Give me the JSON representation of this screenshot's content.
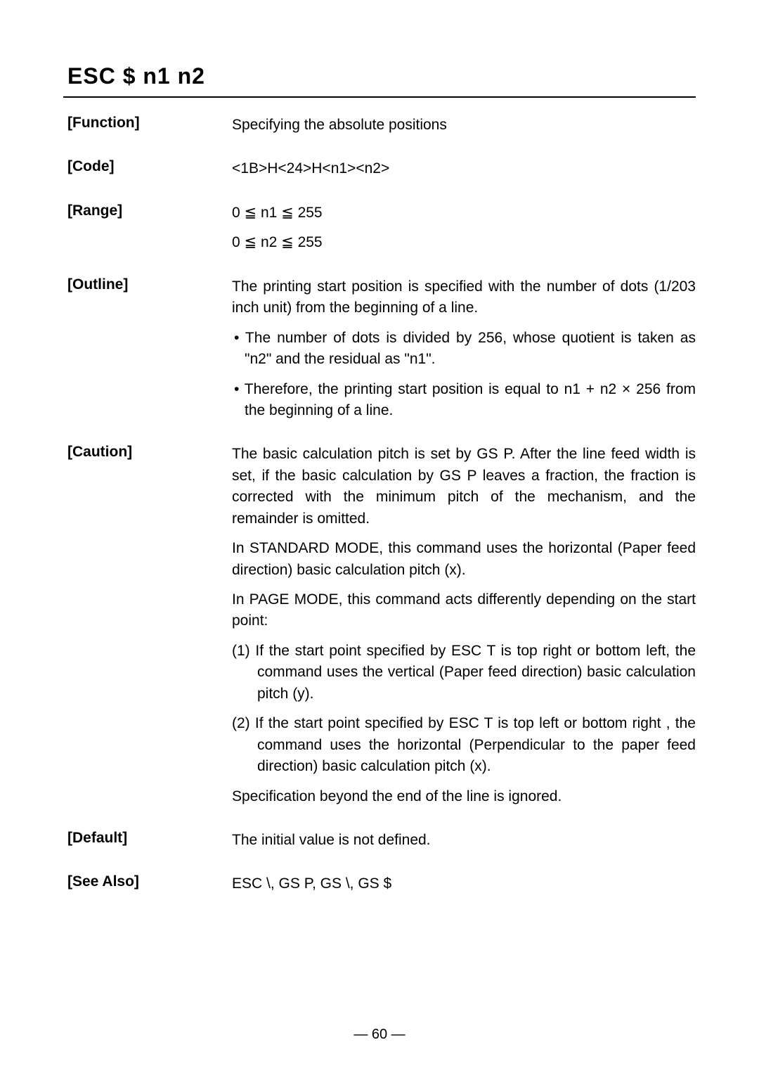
{
  "title": "ESC  $  n1  n2",
  "sections": {
    "function": {
      "label": "[Function]",
      "text": "Specifying the absolute positions"
    },
    "code": {
      "label": "[Code]",
      "text": "<1B>H<24>H<n1><n2>"
    },
    "range": {
      "label": "[Range]",
      "line1": "0 ≦ n1 ≦ 255",
      "line2": "0 ≦ n2 ≦ 255"
    },
    "outline": {
      "label": "[Outline]",
      "p1": "The printing start position is specified with the number of dots (1/203 inch unit) from the beginning of a line.",
      "b1": "• The number of dots is divided by 256, whose quotient is taken as \"n2\" and the residual as \"n1\".",
      "b2": "• Therefore, the printing start position is equal to n1 + n2 × 256 from the beginning of a line."
    },
    "caution": {
      "label": "[Caution]",
      "p1": "The basic calculation pitch is set by GS P. After the line feed width is set, if the basic calculation by GS P leaves a fraction, the fraction is corrected with the minimum pitch of the mechanism, and the remainder is omitted.",
      "p2": "In STANDARD MODE, this command uses the horizontal (Paper feed direction) basic calculation pitch (x).",
      "p3": "In PAGE MODE, this command acts differently depending on the start point:",
      "n1": "(1) If the start point specified by ESC T is top right or bottom left, the command uses the vertical (Paper feed direction) basic calculation pitch (y).",
      "n2": "(2) If the start point specified by ESC T is top left or bottom right , the command uses the horizontal (Perpendicular to the paper feed direction) basic calculation pitch (x).",
      "p4": "Specification beyond the end of the line is ignored."
    },
    "default": {
      "label": "[Default]",
      "text": "The initial value is not defined."
    },
    "seealso": {
      "label": "[See Also]",
      "text": "ESC \\, GS P, GS \\, GS $"
    }
  },
  "pagenum": "— 60 —"
}
